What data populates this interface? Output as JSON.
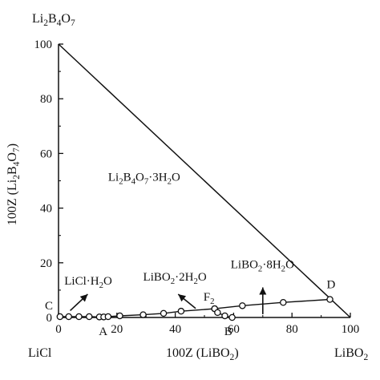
{
  "chart_data": {
    "type": "scatter",
    "subtype": "phase-diagram-ternary-right-triangle",
    "xlabel": "100Z (LiBO<sub>2</sub>)",
    "ylabel": "100Z (Li<sub>2</sub>B<sub>4</sub>O<sub>7</sub>)",
    "xlim": [
      0,
      100
    ],
    "ylim": [
      0,
      100
    ],
    "x_ticks": [
      "0",
      "20",
      "40",
      "60",
      "80",
      "100"
    ],
    "y_ticks": [
      "0",
      "20",
      "40",
      "60",
      "80",
      "100"
    ],
    "corners": {
      "top": "Li<sub>2</sub>B<sub>4</sub>O<sub>7</sub>",
      "bottom_left": "LiCl",
      "bottom_right": "LiBO<sub>2</sub>"
    },
    "boundary_lines": [
      {
        "x": [
          0,
          100
        ],
        "y": [
          100,
          0
        ]
      },
      {
        "x": [
          0,
          100
        ],
        "y": [
          0,
          0
        ]
      },
      {
        "x": [
          0,
          0
        ],
        "y": [
          0,
          100
        ]
      }
    ],
    "series": [
      {
        "values": [
          {
            "x": 0.5,
            "y": 0.3
          },
          {
            "x": 3.5,
            "y": 0.3
          },
          {
            "x": 7,
            "y": 0.3
          },
          {
            "x": 10.5,
            "y": 0.3
          },
          {
            "x": 14,
            "y": 0.2
          },
          {
            "x": 15.5,
            "y": 0.2
          },
          {
            "x": 17,
            "y": 0.3
          },
          {
            "x": 21,
            "y": 0.6
          },
          {
            "x": 29,
            "y": 1.0
          },
          {
            "x": 36,
            "y": 1.5
          },
          {
            "x": 42,
            "y": 2.3
          },
          {
            "x": 53.5,
            "y": 3.2
          },
          {
            "x": 63,
            "y": 4.3
          },
          {
            "x": 77,
            "y": 5.5
          },
          {
            "x": 93,
            "y": 6.6
          }
        ]
      },
      {
        "values": [
          {
            "x": 53.5,
            "y": 3.2
          },
          {
            "x": 54.5,
            "y": 1.8
          },
          {
            "x": 57,
            "y": 0.6
          },
          {
            "x": 59.5,
            "y": 0
          }
        ]
      }
    ],
    "point_labels": [
      {
        "label": "C",
        "x": 0,
        "y": 0
      },
      {
        "label": "A",
        "x": 16,
        "y": 0
      },
      {
        "label": "B",
        "x": 59,
        "y": 0
      },
      {
        "label": "F<sub>2</sub>",
        "x": 53.5,
        "y": 3.2
      },
      {
        "label": "D",
        "x": 93,
        "y": 6.6
      }
    ],
    "regions": [
      {
        "label": "Li<sub>2</sub>B<sub>4</sub>O<sub>7</sub>·3H<sub>2</sub>O"
      },
      {
        "label": "LiCl·H<sub>2</sub>O"
      },
      {
        "label": "LiBO<sub>2</sub>·2H<sub>2</sub>O"
      },
      {
        "label": "LiBO<sub>2</sub>·8H<sub>2</sub>O"
      }
    ],
    "grid": false
  }
}
